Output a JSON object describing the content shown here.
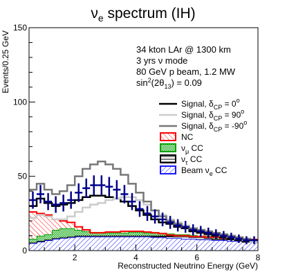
{
  "chart_data": {
    "type": "histogram",
    "title": "νe spectrum (IH)",
    "title_main": "ν",
    "title_sub": "e",
    "title_rest": " spectrum (IH)",
    "xlabel": "Reconstructed Neutrino Energy (GeV)",
    "ylabel": "Events/0.25 GeV",
    "xlim": [
      0.5,
      8.0
    ],
    "ylim": [
      0,
      150
    ],
    "x_ticks": [
      2,
      4,
      6,
      8
    ],
    "y_ticks": [
      0,
      50,
      100,
      150
    ],
    "grid": false,
    "legend_placement": "right",
    "bin_width": 0.25,
    "bin_edges": [
      0.5,
      0.75,
      1.0,
      1.25,
      1.5,
      1.75,
      2.0,
      2.25,
      2.5,
      2.75,
      3.0,
      3.25,
      3.5,
      3.75,
      4.0,
      4.25,
      4.5,
      4.75,
      5.0,
      5.25,
      5.5,
      5.75,
      6.0,
      6.25,
      6.5,
      6.75,
      7.0,
      7.25,
      7.5,
      7.75,
      8.0
    ],
    "annotation": [
      "34 kton LAr @ 1300 km",
      "3 yrs ν mode",
      "80 GeV p beam, 1.2 MW",
      "sin²(2θ13) = 0.09"
    ],
    "series": [
      {
        "name": "Beam νe CC",
        "kind": "hatched-blue",
        "color": "#1a1aff",
        "values": [
          5,
          6,
          7,
          8,
          8.5,
          9,
          9.5,
          9.5,
          9.5,
          9.5,
          9.5,
          9.5,
          9.5,
          9.5,
          9.5,
          9.5,
          9,
          9,
          8.5,
          8.5,
          8,
          8,
          7.5,
          7.5,
          7,
          7,
          6.5,
          6.5,
          6,
          6
        ]
      },
      {
        "name": "ντ CC",
        "kind": "hatched-black",
        "color": "#000000",
        "values": [
          5.5,
          6.5,
          7.5,
          8.5,
          9,
          9.5,
          10,
          10,
          10,
          10,
          10,
          10,
          10,
          10,
          10,
          10,
          10,
          10,
          10,
          9.5,
          9.5,
          9,
          9,
          8.5,
          8,
          8,
          7.5,
          7.5,
          7,
          7
        ]
      },
      {
        "name": "νμ CC",
        "kind": "hatched-green",
        "color": "#00a000",
        "values": [
          8,
          10,
          11,
          14,
          15,
          15,
          14,
          13,
          12,
          12,
          12,
          12,
          12,
          12.5,
          12.5,
          12,
          12,
          11.5,
          11,
          10.5,
          10.5,
          10,
          9.5,
          9.5,
          9,
          9,
          8.5,
          8,
          8,
          7.5
        ]
      },
      {
        "name": "NC",
        "kind": "hatched-red",
        "color": "#ff0000",
        "values": [
          26,
          25,
          24,
          21,
          20,
          19,
          16,
          14,
          12,
          12,
          12.5,
          12.5,
          13,
          13,
          13,
          12.5,
          12,
          11.5,
          10.5,
          10,
          10,
          9.5,
          9.5,
          9,
          9,
          8.5,
          8,
          8,
          7.5,
          7.5
        ]
      },
      {
        "name": "Signal, δCP = 0°",
        "kind": "line",
        "color": "#000000",
        "values": [
          30,
          35,
          32,
          30,
          31,
          32,
          34,
          36,
          37,
          37,
          36,
          35,
          33,
          30,
          27,
          24,
          21,
          19,
          18,
          16,
          15,
          13,
          12,
          11,
          10,
          9,
          8,
          7,
          6,
          6
        ]
      },
      {
        "name": "Signal, δCP = 90°",
        "kind": "line",
        "color": "#cccccc",
        "values": [
          22,
          24,
          23,
          21,
          21,
          23,
          26,
          29,
          31,
          32,
          34,
          35,
          36,
          36,
          34,
          31,
          27,
          24,
          21,
          19,
          17,
          15,
          14,
          13,
          12,
          10,
          9,
          8,
          7,
          6
        ]
      },
      {
        "name": "Signal, δCP = -90°",
        "kind": "line",
        "color": "#777777",
        "values": [
          41,
          45,
          41,
          38,
          40,
          44,
          50,
          55,
          58,
          60,
          58,
          55,
          51,
          45,
          39,
          33,
          27,
          23,
          20,
          18,
          16,
          15,
          14,
          13,
          12,
          11,
          10,
          9,
          8,
          7
        ]
      }
    ],
    "data_points": {
      "x": [
        0.625,
        0.875,
        1.125,
        1.375,
        1.625,
        1.875,
        2.125,
        2.375,
        2.625,
        2.875,
        3.125,
        3.375,
        3.625,
        3.875,
        4.125,
        4.375,
        4.625,
        4.875,
        5.125,
        5.375,
        5.625,
        5.875,
        6.125,
        6.375,
        6.625,
        6.875,
        7.125,
        7.375,
        7.625,
        7.875
      ],
      "y": [
        34,
        38,
        33,
        31,
        32,
        34,
        39,
        42,
        44,
        44,
        43,
        41,
        38,
        33,
        28,
        25,
        23,
        21,
        19,
        17,
        16,
        14,
        13,
        12,
        11,
        10,
        9,
        8,
        7,
        7
      ],
      "color": "#00008b"
    }
  },
  "legend": [
    {
      "kind": "line",
      "color": "#000000",
      "main": "Signal, δ",
      "sub": "CP",
      "rest": " = 0",
      "sup": "o"
    },
    {
      "kind": "line",
      "color": "#cccccc",
      "main": "Signal, δ",
      "sub": "CP",
      "rest": " = 90",
      "sup": "o"
    },
    {
      "kind": "line",
      "color": "#777777",
      "main": "Signal, δ",
      "sub": "CP",
      "rest": " = -90",
      "sup": "o"
    },
    {
      "kind": "box",
      "color": "#ff0000",
      "main": "NC",
      "sub": "",
      "rest": "",
      "sup": ""
    },
    {
      "kind": "box",
      "color": "#00a000",
      "main": "ν",
      "sub": "μ",
      "rest": " CC",
      "sup": ""
    },
    {
      "kind": "box",
      "color": "#000000",
      "main": "ν",
      "sub": "τ",
      "rest": " CC",
      "sup": ""
    },
    {
      "kind": "box",
      "color": "#1a1aff",
      "main": "Beam ν",
      "sub": "e",
      "rest": " CC",
      "sup": ""
    }
  ],
  "info": [
    {
      "main": "34 kton LAr @ 1300 km",
      "sup": "",
      "sub": "",
      "rest": ""
    },
    {
      "main": "3 yrs ν mode",
      "sup": "",
      "sub": "",
      "rest": ""
    },
    {
      "main": "80 GeV p beam, 1.2 MW",
      "sup": "",
      "sub": "",
      "rest": ""
    },
    {
      "main": "sin",
      "sup": "2",
      "mid": "(2θ",
      "sub": "13",
      "rest": ") = 0.09"
    }
  ]
}
